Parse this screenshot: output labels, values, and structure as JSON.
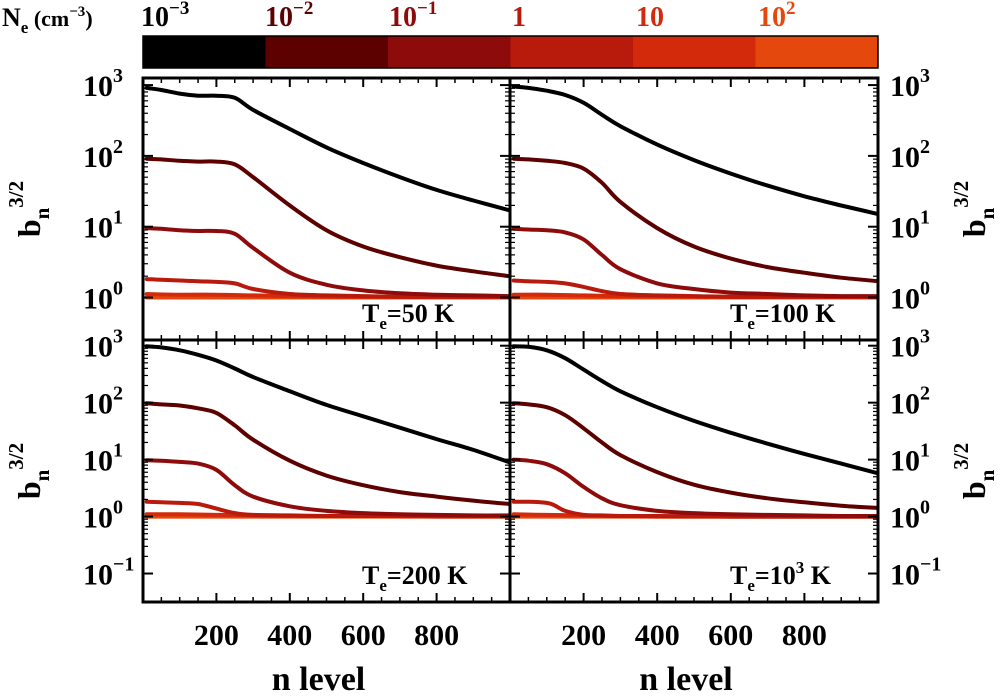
{
  "chart_data": {
    "type": "line",
    "colorbar": {
      "label_main": "N",
      "label_sub": "e",
      "label_unit": " (cm",
      "label_unit_exp": "−3",
      "label_close": ")",
      "entries": [
        {
          "base": "10",
          "exp": "−3",
          "color": "#000000"
        },
        {
          "base": "10",
          "exp": "−2",
          "color": "#5c0000"
        },
        {
          "base": "10",
          "exp": "−1",
          "color": "#8e0b0b"
        },
        {
          "base": "1",
          "exp": "",
          "color": "#b81a0c"
        },
        {
          "base": "10",
          "exp": "",
          "color": "#d32a0c"
        },
        {
          "base": "10",
          "exp": "2",
          "color": "#e5480c"
        }
      ]
    },
    "x": {
      "label": "n level",
      "range": [
        0,
        1000
      ],
      "ticks": [
        200,
        400,
        600,
        800
      ]
    },
    "y": {
      "label_main": "b",
      "label_sub": "n",
      "label_exp": "3/2",
      "scale": "log"
    },
    "panels": [
      {
        "id": "te50",
        "te_main": "T",
        "te_sub": "e",
        "te_text": "=50 K",
        "te_exp": "",
        "te_tail": "",
        "ylim_log": [
          -0.6,
          3.1
        ],
        "yticks": [
          {
            "b": "10",
            "e": "0",
            "v": 0
          },
          {
            "b": "10",
            "e": "1",
            "v": 1
          },
          {
            "b": "10",
            "e": "2",
            "v": 2
          },
          {
            "b": "10",
            "e": "3",
            "v": 3
          }
        ],
        "series": [
          {
            "ne": "1e-3",
            "x": [
              10,
              50,
              100,
              150,
              200,
              250,
              300,
              400,
              500,
              600,
              700,
              800,
              900,
              1000
            ],
            "log10_y": [
              2.96,
              2.93,
              2.88,
              2.85,
              2.85,
              2.82,
              2.65,
              2.38,
              2.12,
              1.9,
              1.7,
              1.52,
              1.37,
              1.23
            ]
          },
          {
            "ne": "1e-2",
            "x": [
              10,
              50,
              100,
              150,
              200,
              250,
              300,
              400,
              500,
              600,
              700,
              800,
              900,
              1000
            ],
            "log10_y": [
              1.96,
              1.95,
              1.93,
              1.92,
              1.92,
              1.88,
              1.7,
              1.3,
              0.95,
              0.72,
              0.57,
              0.45,
              0.37,
              0.3
            ]
          },
          {
            "ne": "1e-1",
            "x": [
              10,
              50,
              100,
              150,
              200,
              250,
              300,
              400,
              500,
              600,
              700,
              800,
              900,
              1000
            ],
            "log10_y": [
              0.98,
              0.97,
              0.95,
              0.94,
              0.94,
              0.9,
              0.7,
              0.35,
              0.18,
              0.1,
              0.06,
              0.04,
              0.03,
              0.02
            ]
          },
          {
            "ne": "1",
            "x": [
              10,
              50,
              100,
              150,
              200,
              250,
              300,
              400,
              500,
              600,
              700,
              800,
              900,
              1000
            ],
            "log10_y": [
              0.26,
              0.25,
              0.24,
              0.23,
              0.22,
              0.2,
              0.12,
              0.05,
              0.03,
              0.02,
              0.01,
              0.01,
              0.01,
              0.01
            ]
          },
          {
            "ne": "10",
            "x": [
              10,
              100,
              200,
              300,
              400,
              600,
              800,
              1000
            ],
            "log10_y": [
              0.05,
              0.04,
              0.04,
              0.03,
              0.02,
              0.01,
              0.01,
              0.0
            ]
          },
          {
            "ne": "1e2",
            "x": [
              10,
              100,
              200,
              300,
              400,
              600,
              800,
              1000
            ],
            "log10_y": [
              0.0,
              0.0,
              0.0,
              0.0,
              0.0,
              0.0,
              0.0,
              0.0
            ]
          }
        ]
      },
      {
        "id": "te100",
        "te_main": "T",
        "te_sub": "e",
        "te_text": "=100 K",
        "te_exp": "",
        "te_tail": "",
        "ylim_log": [
          -0.6,
          3.1
        ],
        "yticks": [
          {
            "b": "10",
            "e": "0",
            "v": 0
          },
          {
            "b": "10",
            "e": "1",
            "v": 1
          },
          {
            "b": "10",
            "e": "2",
            "v": 2
          },
          {
            "b": "10",
            "e": "3",
            "v": 3
          }
        ],
        "series": [
          {
            "ne": "1e-3",
            "x": [
              10,
              50,
              100,
              150,
              200,
              250,
              300,
              400,
              500,
              600,
              700,
              800,
              900,
              1000
            ],
            "log10_y": [
              2.98,
              2.96,
              2.92,
              2.86,
              2.75,
              2.58,
              2.42,
              2.16,
              1.94,
              1.75,
              1.58,
              1.43,
              1.3,
              1.18
            ]
          },
          {
            "ne": "1e-2",
            "x": [
              10,
              50,
              100,
              150,
              200,
              250,
              300,
              400,
              500,
              600,
              700,
              800,
              900,
              1000
            ],
            "log10_y": [
              1.96,
              1.95,
              1.93,
              1.9,
              1.82,
              1.62,
              1.35,
              0.98,
              0.72,
              0.55,
              0.43,
              0.35,
              0.28,
              0.23
            ]
          },
          {
            "ne": "1e-1",
            "x": [
              10,
              50,
              100,
              150,
              200,
              250,
              300,
              400,
              500,
              600,
              700,
              800,
              900,
              1000
            ],
            "log10_y": [
              0.97,
              0.96,
              0.95,
              0.92,
              0.82,
              0.6,
              0.4,
              0.2,
              0.12,
              0.07,
              0.05,
              0.03,
              0.02,
              0.02
            ]
          },
          {
            "ne": "1",
            "x": [
              10,
              50,
              100,
              150,
              200,
              250,
              300,
              400,
              500,
              600,
              700,
              800,
              900,
              1000
            ],
            "log10_y": [
              0.24,
              0.23,
              0.22,
              0.2,
              0.15,
              0.09,
              0.05,
              0.03,
              0.02,
              0.01,
              0.01,
              0.01,
              0.01,
              0.01
            ]
          },
          {
            "ne": "10",
            "x": [
              10,
              100,
              200,
              300,
              400,
              600,
              800,
              1000
            ],
            "log10_y": [
              0.04,
              0.04,
              0.03,
              0.02,
              0.02,
              0.01,
              0.01,
              0.0
            ]
          },
          {
            "ne": "1e2",
            "x": [
              10,
              100,
              200,
              300,
              400,
              600,
              800,
              1000
            ],
            "log10_y": [
              0.0,
              0.0,
              0.0,
              0.0,
              0.0,
              0.0,
              0.0,
              0.0
            ]
          }
        ]
      },
      {
        "id": "te200",
        "te_main": "T",
        "te_sub": "e",
        "te_text": "=200 K",
        "te_exp": "",
        "te_tail": "",
        "ylim_log": [
          -1.5,
          3.1
        ],
        "yticks": [
          {
            "b": "10",
            "e": "−1",
            "v": -1
          },
          {
            "b": "10",
            "e": "0",
            "v": 0
          },
          {
            "b": "10",
            "e": "1",
            "v": 1
          },
          {
            "b": "10",
            "e": "2",
            "v": 2
          },
          {
            "b": "10",
            "e": "3",
            "v": 3
          }
        ],
        "series": [
          {
            "ne": "1e-3",
            "x": [
              10,
              50,
              100,
              150,
              200,
              250,
              300,
              400,
              500,
              600,
              700,
              800,
              900,
              1000
            ],
            "log10_y": [
              2.99,
              2.97,
              2.92,
              2.84,
              2.74,
              2.6,
              2.45,
              2.2,
              1.96,
              1.76,
              1.56,
              1.36,
              1.17,
              0.95
            ]
          },
          {
            "ne": "1e-2",
            "x": [
              10,
              50,
              100,
              150,
              200,
              250,
              300,
              400,
              500,
              600,
              700,
              800,
              900,
              1000
            ],
            "log10_y": [
              1.99,
              1.97,
              1.95,
              1.9,
              1.82,
              1.6,
              1.35,
              0.98,
              0.72,
              0.55,
              0.43,
              0.35,
              0.28,
              0.22
            ]
          },
          {
            "ne": "1e-1",
            "x": [
              10,
              50,
              100,
              150,
              200,
              250,
              300,
              400,
              500,
              600,
              700,
              800,
              900,
              1000
            ],
            "log10_y": [
              0.99,
              0.98,
              0.96,
              0.93,
              0.82,
              0.55,
              0.35,
              0.18,
              0.1,
              0.06,
              0.04,
              0.03,
              0.02,
              0.02
            ]
          },
          {
            "ne": "1",
            "x": [
              10,
              50,
              100,
              150,
              200,
              250,
              300,
              400,
              500,
              600,
              700,
              800,
              900,
              1000
            ],
            "log10_y": [
              0.26,
              0.25,
              0.24,
              0.22,
              0.14,
              0.06,
              0.03,
              0.02,
              0.01,
              0.01,
              0.01,
              0.01,
              0.01,
              0.01
            ]
          },
          {
            "ne": "10",
            "x": [
              10,
              100,
              200,
              300,
              400,
              600,
              800,
              1000
            ],
            "log10_y": [
              0.04,
              0.04,
              0.03,
              0.02,
              0.01,
              0.01,
              0.0,
              0.0
            ]
          },
          {
            "ne": "1e2",
            "x": [
              10,
              100,
              200,
              300,
              400,
              600,
              800,
              1000
            ],
            "log10_y": [
              0.0,
              0.0,
              0.0,
              0.0,
              0.0,
              0.0,
              0.0,
              0.0
            ]
          }
        ]
      },
      {
        "id": "te1000",
        "te_main": "T",
        "te_sub": "e",
        "te_text": "=10",
        "te_exp": "3",
        "te_tail": " K",
        "ylim_log": [
          -1.5,
          3.1
        ],
        "yticks": [
          {
            "b": "10",
            "e": "−1",
            "v": -1
          },
          {
            "b": "10",
            "e": "0",
            "v": 0
          },
          {
            "b": "10",
            "e": "1",
            "v": 1
          },
          {
            "b": "10",
            "e": "2",
            "v": 2
          },
          {
            "b": "10",
            "e": "3",
            "v": 3
          }
        ],
        "series": [
          {
            "ne": "1e-3",
            "x": [
              10,
              50,
              100,
              150,
              200,
              250,
              300,
              400,
              500,
              600,
              700,
              800,
              900,
              1000
            ],
            "log10_y": [
              2.99,
              2.98,
              2.92,
              2.78,
              2.58,
              2.38,
              2.2,
              1.92,
              1.68,
              1.47,
              1.28,
              1.1,
              0.93,
              0.76
            ]
          },
          {
            "ne": "1e-2",
            "x": [
              10,
              50,
              100,
              150,
              200,
              250,
              300,
              400,
              500,
              600,
              700,
              800,
              900,
              1000
            ],
            "log10_y": [
              1.99,
              1.97,
              1.92,
              1.78,
              1.55,
              1.3,
              1.08,
              0.78,
              0.56,
              0.42,
              0.32,
              0.25,
              0.19,
              0.15
            ]
          },
          {
            "ne": "1e-1",
            "x": [
              10,
              50,
              100,
              150,
              200,
              250,
              300,
              400,
              500,
              600,
              700,
              800,
              900,
              1000
            ],
            "log10_y": [
              1.0,
              0.98,
              0.92,
              0.76,
              0.52,
              0.32,
              0.2,
              0.1,
              0.06,
              0.04,
              0.03,
              0.02,
              0.01,
              0.01
            ]
          },
          {
            "ne": "1",
            "x": [
              10,
              50,
              100,
              120,
              150,
              200,
              250,
              300,
              400,
              600,
              800,
              1000
            ],
            "log10_y": [
              0.26,
              0.26,
              0.24,
              0.2,
              0.1,
              0.03,
              0.02,
              0.01,
              0.01,
              0.0,
              0.0,
              0.0
            ]
          },
          {
            "ne": "10",
            "x": [
              10,
              100,
              200,
              300,
              400,
              600,
              800,
              1000
            ],
            "log10_y": [
              0.04,
              0.03,
              0.02,
              0.01,
              0.0,
              0.0,
              0.0,
              0.0
            ]
          },
          {
            "ne": "1e2",
            "x": [
              10,
              100,
              200,
              300,
              400,
              600,
              800,
              1000
            ],
            "log10_y": [
              0.0,
              0.0,
              0.0,
              0.0,
              0.0,
              0.0,
              0.0,
              0.0
            ]
          }
        ]
      }
    ]
  }
}
